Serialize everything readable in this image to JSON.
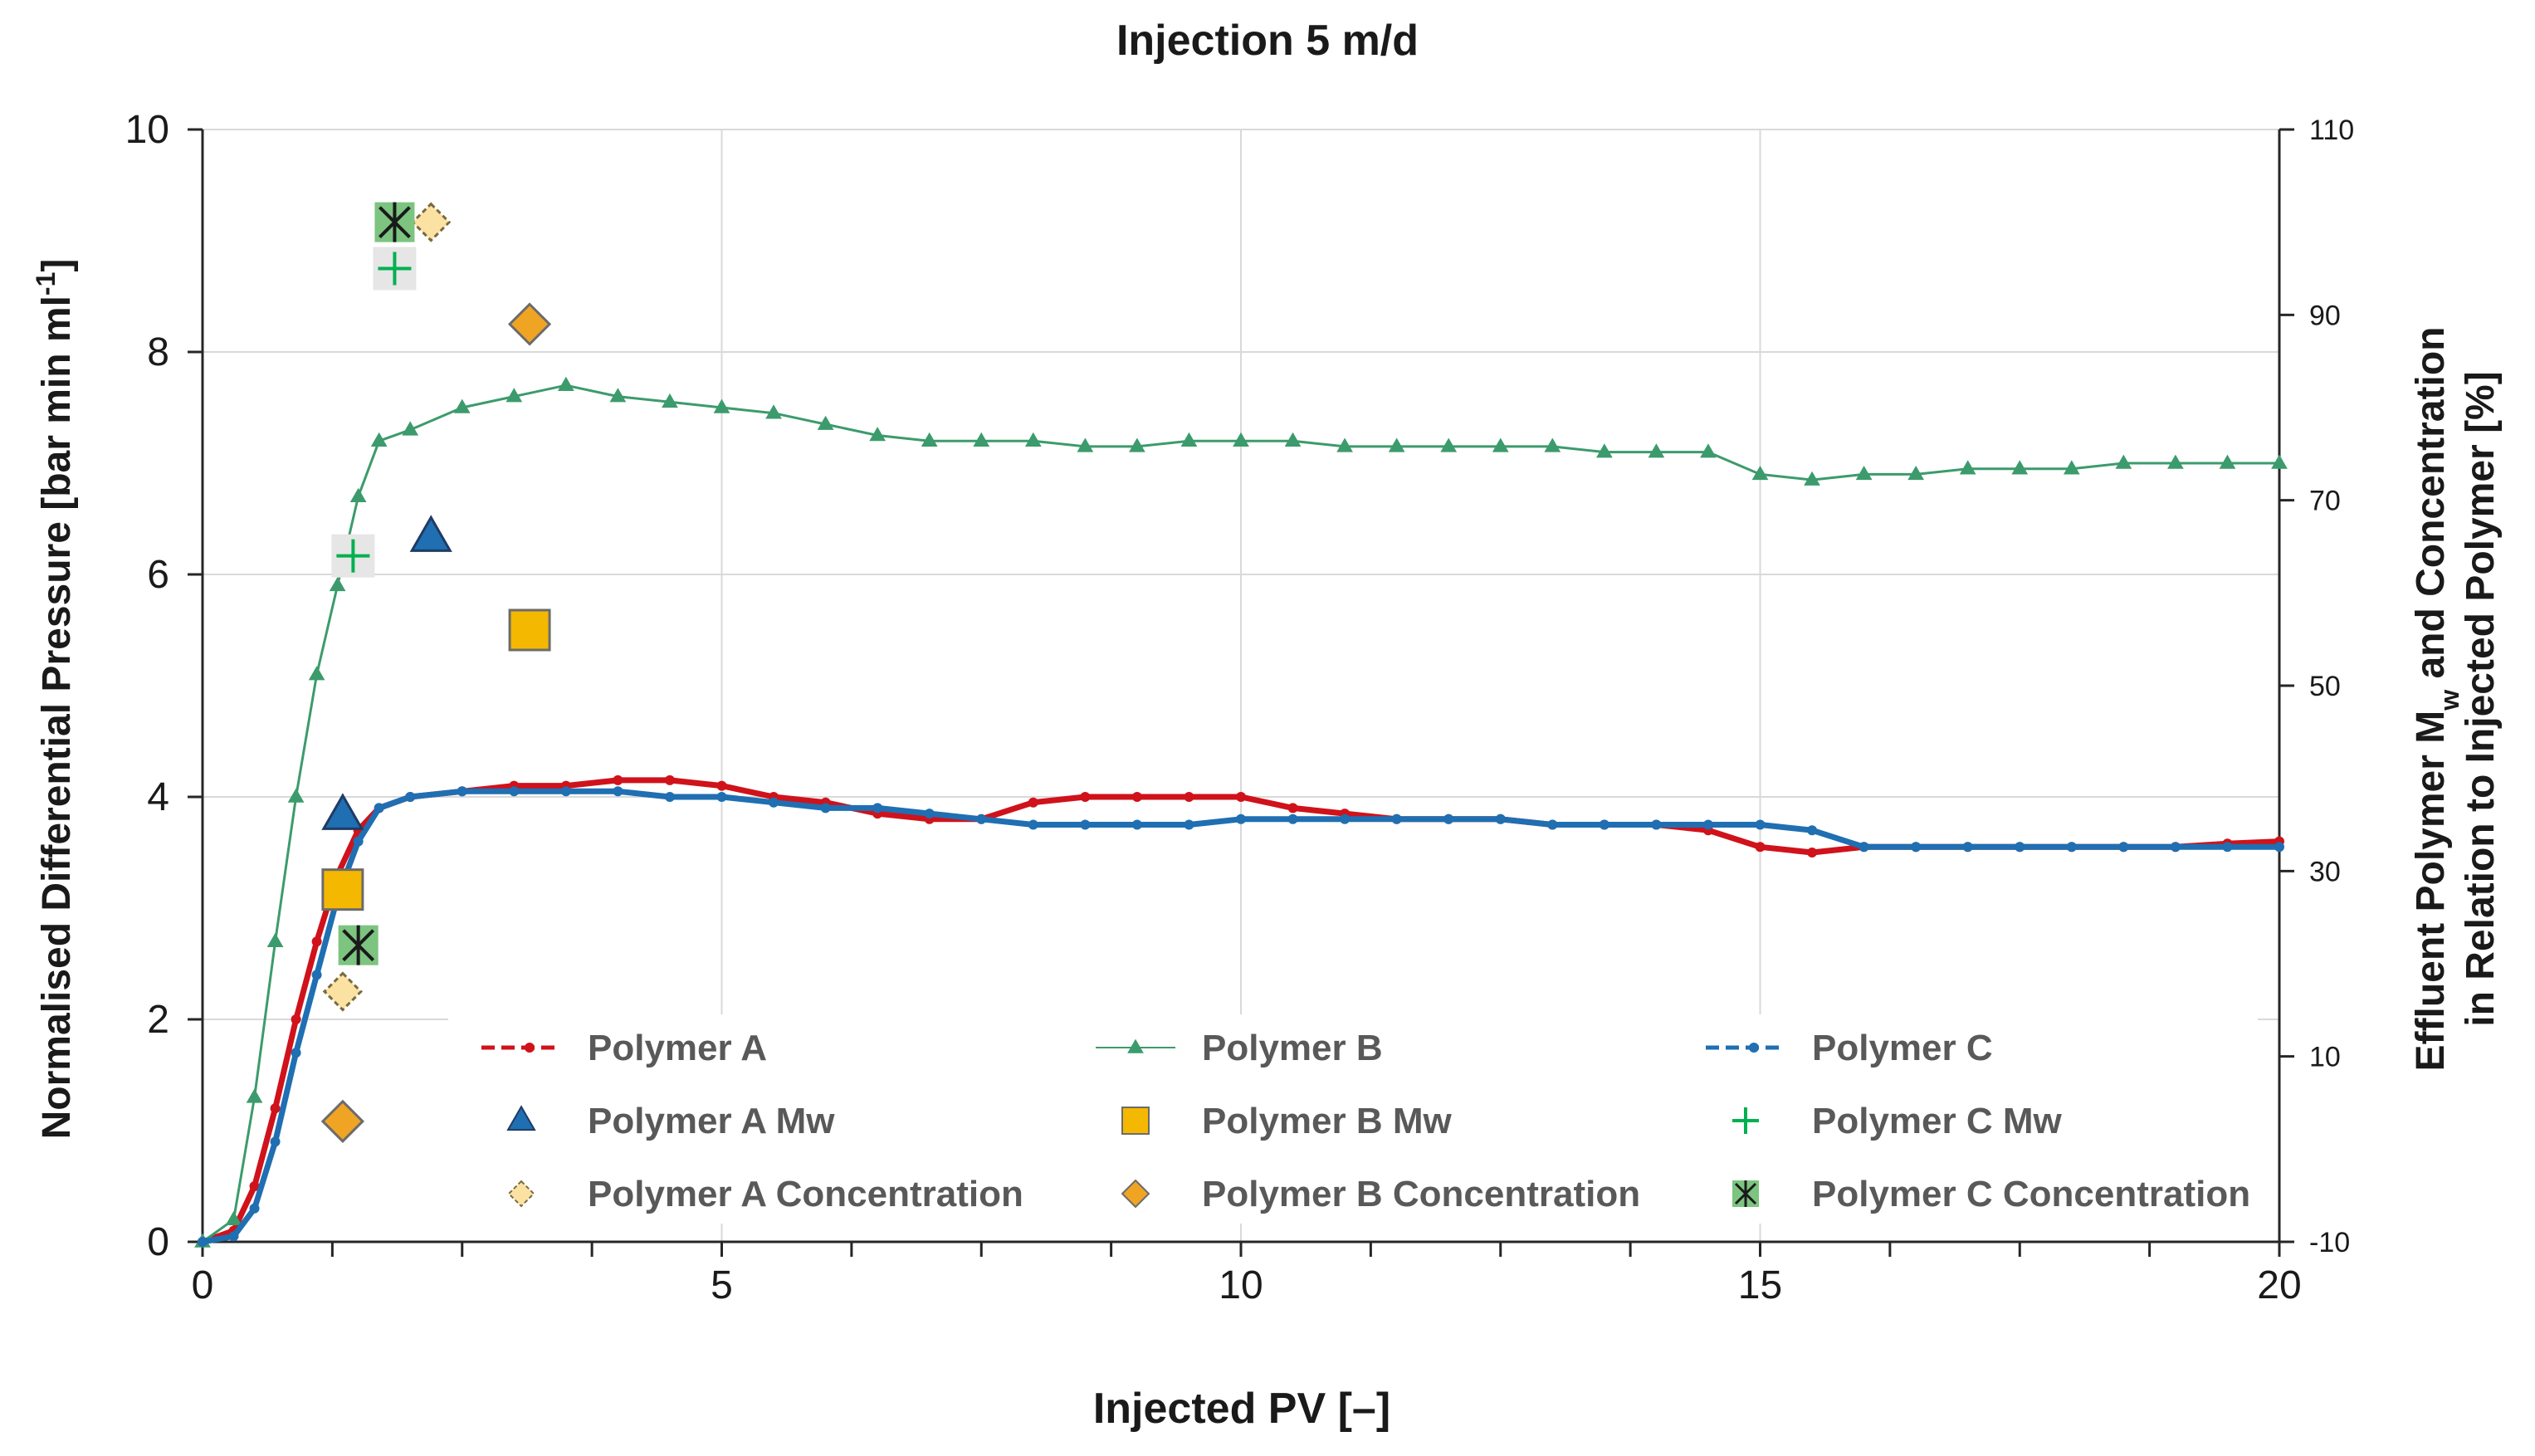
{
  "chart_data": {
    "type": "scatter",
    "title": "Injection 5 m/d",
    "xlabel": "Injected PV [–]",
    "ylabel_left": "Normalised Differential Pressure [bar min ml",
    "ylabel_left_sup": "-1",
    "ylabel_left_end": "]",
    "ylabel_right_line1_a": "Effluent Polymer M",
    "ylabel_right_line1_sub": "w",
    "ylabel_right_line1_b": " and Concentration",
    "ylabel_right_line2": "in Relation to Injected Polymer [%]",
    "xlim": [
      0,
      20
    ],
    "ylim_left": [
      0,
      10
    ],
    "ylim_right": [
      -10,
      110
    ],
    "x_ticks": [
      0,
      5,
      10,
      15,
      20
    ],
    "y_ticks_left": [
      0,
      2,
      4,
      6,
      8,
      10
    ],
    "y_ticks_right": [
      -10,
      10,
      30,
      50,
      70,
      90,
      110
    ],
    "grid": true,
    "series": [
      {
        "name": "Polymer A",
        "axis": "left",
        "color": "#d0121b",
        "marker": "dash-dot",
        "x": [
          0,
          0.3,
          0.5,
          0.7,
          0.9,
          1.1,
          1.3,
          1.5,
          1.7,
          2.0,
          2.5,
          3.0,
          3.5,
          4.0,
          4.5,
          5.0,
          5.5,
          6.0,
          6.5,
          7.0,
          7.5,
          8.0,
          8.5,
          9.0,
          9.5,
          10.0,
          10.5,
          11.0,
          11.5,
          12.0,
          12.5,
          13.0,
          13.5,
          14.0,
          14.5,
          15.0,
          15.5,
          16.0,
          16.5,
          17.0,
          17.5,
          18.0,
          18.5,
          19.0,
          19.5,
          20.0
        ],
        "y": [
          0,
          0.1,
          0.5,
          1.2,
          2.0,
          2.7,
          3.3,
          3.7,
          3.9,
          4.0,
          4.05,
          4.1,
          4.1,
          4.15,
          4.15,
          4.1,
          4.0,
          3.95,
          3.85,
          3.8,
          3.8,
          3.95,
          4.0,
          4.0,
          4.0,
          4.0,
          3.9,
          3.85,
          3.8,
          3.8,
          3.8,
          3.75,
          3.75,
          3.75,
          3.7,
          3.55,
          3.5,
          3.55,
          3.55,
          3.55,
          3.55,
          3.55,
          3.55,
          3.55,
          3.58,
          3.6
        ]
      },
      {
        "name": "Polymer B",
        "axis": "left",
        "color": "#3c9b6c",
        "marker": "triangle",
        "x": [
          0,
          0.3,
          0.5,
          0.7,
          0.9,
          1.1,
          1.3,
          1.5,
          1.7,
          2.0,
          2.5,
          3.0,
          3.5,
          4.0,
          4.5,
          5.0,
          5.5,
          6.0,
          6.5,
          7.0,
          7.5,
          8.0,
          8.5,
          9.0,
          9.5,
          10.0,
          10.5,
          11.0,
          11.5,
          12.0,
          12.5,
          13.0,
          13.5,
          14.0,
          14.5,
          15.0,
          15.5,
          16.0,
          16.5,
          17.0,
          17.5,
          18.0,
          18.5,
          19.0,
          19.5,
          20.0
        ],
        "y": [
          0,
          0.2,
          1.3,
          2.7,
          4.0,
          5.1,
          5.9,
          6.7,
          7.2,
          7.3,
          7.5,
          7.6,
          7.7,
          7.6,
          7.55,
          7.5,
          7.45,
          7.35,
          7.25,
          7.2,
          7.2,
          7.2,
          7.15,
          7.15,
          7.2,
          7.2,
          7.2,
          7.15,
          7.15,
          7.15,
          7.15,
          7.15,
          7.1,
          7.1,
          7.1,
          6.9,
          6.85,
          6.9,
          6.9,
          6.95,
          6.95,
          6.95,
          7.0,
          7.0,
          7.0,
          7.0
        ]
      },
      {
        "name": "Polymer C",
        "axis": "left",
        "color": "#1f6fb2",
        "marker": "dash-dot",
        "x": [
          0,
          0.3,
          0.5,
          0.7,
          0.9,
          1.1,
          1.3,
          1.5,
          1.7,
          2.0,
          2.5,
          3.0,
          3.5,
          4.0,
          4.5,
          5.0,
          5.5,
          6.0,
          6.5,
          7.0,
          7.5,
          8.0,
          8.5,
          9.0,
          9.5,
          10.0,
          10.5,
          11.0,
          11.5,
          12.0,
          12.5,
          13.0,
          13.5,
          14.0,
          14.5,
          15.0,
          15.5,
          16.0,
          16.5,
          17.0,
          17.5,
          18.0,
          18.5,
          19.0,
          19.5,
          20.0
        ],
        "y": [
          0,
          0.05,
          0.3,
          0.9,
          1.7,
          2.4,
          3.1,
          3.6,
          3.9,
          4.0,
          4.05,
          4.05,
          4.05,
          4.05,
          4.0,
          4.0,
          3.95,
          3.9,
          3.9,
          3.85,
          3.8,
          3.75,
          3.75,
          3.75,
          3.75,
          3.8,
          3.8,
          3.8,
          3.8,
          3.8,
          3.8,
          3.75,
          3.75,
          3.75,
          3.75,
          3.75,
          3.7,
          3.55,
          3.55,
          3.55,
          3.55,
          3.55,
          3.55,
          3.55,
          3.55,
          3.55
        ]
      },
      {
        "name": "Polymer A Mw",
        "axis": "right",
        "color": "#1f6fb2",
        "marker": "big-triangle",
        "x": [
          1.35,
          2.2
        ],
        "y": [
          36,
          66
        ]
      },
      {
        "name": "Polymer B Mw",
        "axis": "right",
        "color": "#f5b800",
        "marker": "big-square",
        "x": [
          1.35,
          3.15
        ],
        "y": [
          28,
          56
        ]
      },
      {
        "name": "Polymer C Mw",
        "axis": "right",
        "color": "#00b050",
        "marker": "plus",
        "x": [
          1.45,
          1.85
        ],
        "y": [
          64,
          95
        ]
      },
      {
        "name": "Polymer A Concentration",
        "axis": "right",
        "color": "#fbe2a3",
        "marker": "diamond-outline",
        "x": [
          1.35,
          2.2
        ],
        "y": [
          17,
          100
        ]
      },
      {
        "name": "Polymer B Concentration",
        "axis": "right",
        "color": "#f0a424",
        "marker": "big-diamond",
        "x": [
          1.35,
          3.15
        ],
        "y": [
          3,
          89
        ]
      },
      {
        "name": "Polymer C Concentration",
        "axis": "right",
        "color": "#1a1a1a",
        "marker": "star-box",
        "x": [
          1.5,
          1.85
        ],
        "y": [
          22,
          100
        ]
      }
    ]
  }
}
